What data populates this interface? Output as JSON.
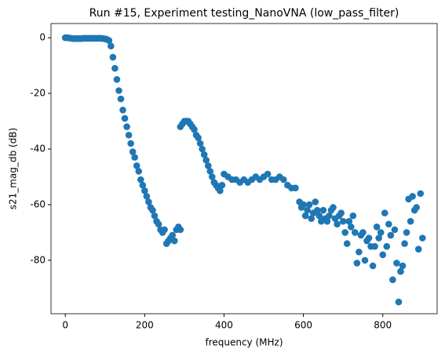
{
  "chart_data": {
    "type": "scatter",
    "title": "Run #15, Experiment testing_NanoVNA (low_pass_filter)",
    "x_label": "frequency (MHz)",
    "y_label": "s21_mag_db (dB)",
    "color": "#1f77b4",
    "xlim": [
      -36,
      937
    ],
    "ylim": [
      -99.2,
      5.1
    ],
    "xticks": [
      0,
      200,
      400,
      600,
      800
    ],
    "yticks": [
      0,
      -20,
      -40,
      -60,
      -80
    ],
    "x": [
      0,
      5,
      10,
      15,
      20,
      25,
      30,
      35,
      40,
      45,
      50,
      55,
      60,
      65,
      70,
      75,
      80,
      85,
      90,
      95,
      100,
      105,
      110,
      115,
      120,
      125,
      130,
      135,
      140,
      145,
      150,
      155,
      160,
      165,
      170,
      175,
      180,
      185,
      190,
      195,
      200,
      205,
      210,
      215,
      220,
      225,
      230,
      235,
      240,
      245,
      250,
      255,
      260,
      265,
      270,
      275,
      280,
      285,
      290,
      290,
      295,
      300,
      305,
      310,
      315,
      320,
      325,
      330,
      335,
      340,
      345,
      350,
      355,
      360,
      365,
      370,
      375,
      380,
      385,
      390,
      395,
      400,
      410,
      420,
      430,
      440,
      450,
      460,
      470,
      480,
      490,
      500,
      510,
      520,
      530,
      540,
      550,
      560,
      570,
      580,
      590,
      595,
      600,
      605,
      610,
      615,
      620,
      625,
      630,
      635,
      640,
      645,
      650,
      655,
      660,
      665,
      670,
      675,
      680,
      685,
      690,
      695,
      700,
      705,
      710,
      715,
      720,
      725,
      730,
      735,
      740,
      745,
      750,
      755,
      760,
      765,
      770,
      775,
      780,
      785,
      790,
      795,
      800,
      805,
      810,
      815,
      820,
      825,
      830,
      835,
      840,
      845,
      850,
      855,
      860,
      865,
      870,
      875,
      880,
      885,
      890,
      895,
      900
    ],
    "values": [
      0,
      0,
      -0.1,
      -0.2,
      -0.3,
      -0.3,
      -0.3,
      -0.3,
      -0.3,
      -0.2,
      -0.2,
      -0.2,
      -0.2,
      -0.2,
      -0.2,
      -0.2,
      -0.2,
      -0.2,
      -0.2,
      -0.3,
      -0.4,
      -0.6,
      -1,
      -3,
      -7,
      -11,
      -15,
      -19,
      -22,
      -26,
      -29,
      -32,
      -35,
      -38,
      -41,
      -43,
      -46,
      -48,
      -51,
      -53,
      -55,
      -57,
      -59,
      -61,
      -62,
      -64,
      -66,
      -67,
      -69,
      -70,
      -69,
      -74,
      -73,
      -72,
      -71,
      -73,
      -69,
      -68,
      -69,
      -32,
      -31,
      -30,
      -30,
      -30,
      -31,
      -32,
      -33,
      -35,
      -36,
      -38,
      -40,
      -42,
      -44,
      -46,
      -48,
      -50,
      -52,
      -53,
      -54,
      -55,
      -53,
      -49,
      -50,
      -51,
      -51,
      -52,
      -51,
      -52,
      -51,
      -50,
      -51,
      -50,
      -49,
      -51,
      -51,
      -50,
      -51,
      -53,
      -54,
      -54,
      -59,
      -61,
      -60,
      -64,
      -62,
      -60,
      -65,
      -63,
      -59,
      -62,
      -64,
      -66,
      -62,
      -65,
      -66,
      -64,
      -62,
      -61,
      -65,
      -67,
      -64,
      -63,
      -66,
      -70,
      -74,
      -66,
      -68,
      -64,
      -70,
      -81,
      -77,
      -71,
      -70,
      -80,
      -73,
      -72,
      -75,
      -82,
      -75,
      -68,
      -72,
      -70,
      -78,
      -63,
      -75,
      -67,
      -71,
      -87,
      -69,
      -81,
      -95,
      -84,
      -82,
      -74,
      -70,
      -58,
      -66,
      -57,
      -62,
      -61,
      -76,
      -56,
      -72
    ]
  }
}
